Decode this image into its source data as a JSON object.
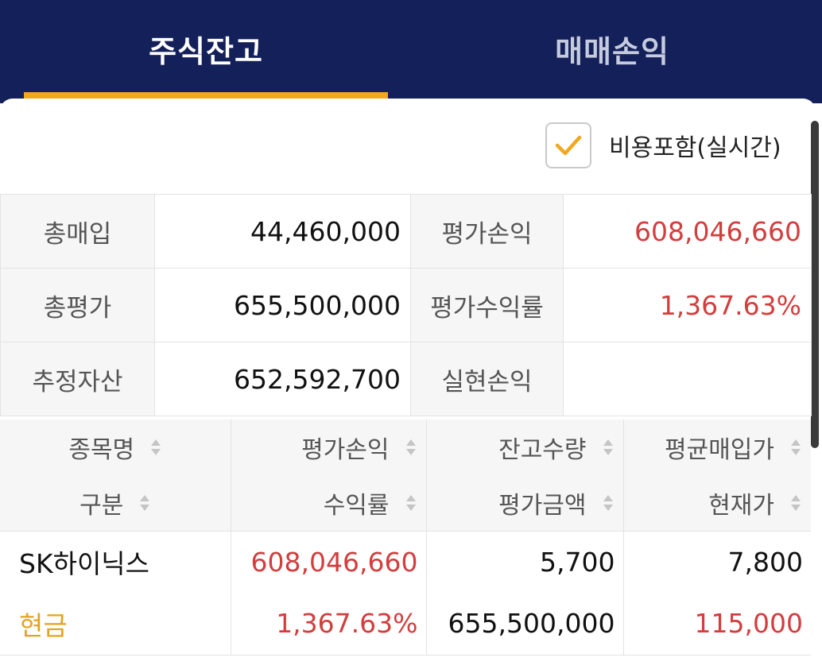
{
  "tabs": [
    {
      "label": "주식잔고",
      "active": true
    },
    {
      "label": "매매손익",
      "active": false
    }
  ],
  "option": {
    "label": "비용포함(실시간)",
    "checked": true
  },
  "colors": {
    "header": "#14205a",
    "accent": "#f2a81d",
    "profit": "#d33d3d",
    "cash": "#e3a41d"
  },
  "summary": [
    {
      "label1": "총매입",
      "value1": "44,460,000",
      "label2": "평가손익",
      "value2": "608,046,660"
    },
    {
      "label1": "총평가",
      "value1": "655,500,000",
      "label2": "평가수익률",
      "value2": "1,367.63%"
    },
    {
      "label1": "추정자산",
      "value1": "652,592,700",
      "label2": "실현손익",
      "value2": ""
    }
  ],
  "holdings": {
    "headers_row1": [
      "종목명",
      "평가손익",
      "잔고수량",
      "평균매입가"
    ],
    "headers_row2": [
      "구분",
      "수익률",
      "평가금액",
      "현재가"
    ],
    "rows": [
      {
        "name": "SK하이닉스",
        "type": "현금",
        "eval_pl": "608,046,660",
        "return_rate": "1,367.63%",
        "quantity": "5,700",
        "eval_amount": "655,500,000",
        "avg_price": "7,800",
        "current_price": "115,000"
      }
    ]
  }
}
